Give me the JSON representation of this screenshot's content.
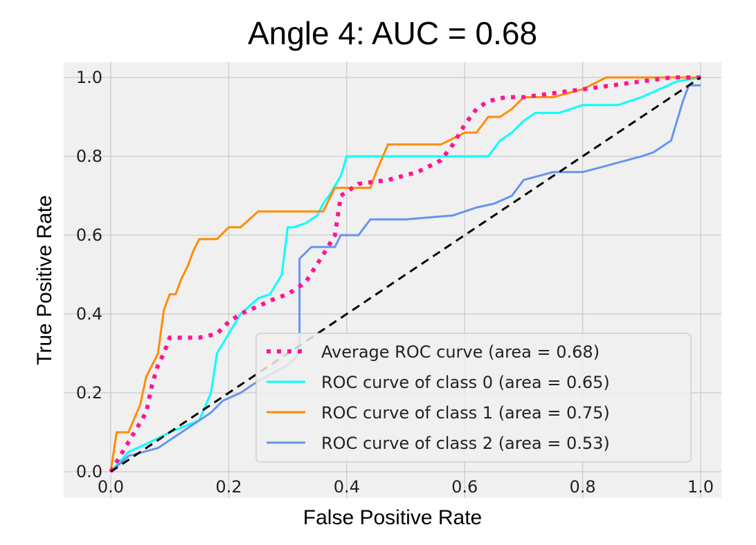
{
  "chart_data": {
    "type": "line",
    "title": "Angle 4: AUC = 0.68",
    "xlabel": "False Positive Rate",
    "ylabel": "True Positive Rate",
    "xlim": [
      0.0,
      1.0
    ],
    "ylim": [
      0.0,
      1.0
    ],
    "xticks": [
      "0.0",
      "0.2",
      "0.4",
      "0.6",
      "0.8",
      "1.0"
    ],
    "yticks": [
      "0.0",
      "0.2",
      "0.4",
      "0.6",
      "0.8",
      "1.0"
    ],
    "grid": true,
    "legend_position": "lower-right",
    "series": [
      {
        "name": "Average ROC curve (area = 0.68)",
        "color": "#ff1493",
        "style": "dotted",
        "x": [
          0.0,
          0.02,
          0.04,
          0.06,
          0.07,
          0.08,
          0.09,
          0.1,
          0.12,
          0.15,
          0.18,
          0.2,
          0.22,
          0.25,
          0.28,
          0.3,
          0.33,
          0.36,
          0.38,
          0.39,
          0.42,
          0.47,
          0.52,
          0.56,
          0.58,
          0.6,
          0.62,
          0.64,
          0.67,
          0.7,
          0.75,
          0.8,
          0.85,
          0.9,
          0.95,
          1.0
        ],
        "y": [
          0.0,
          0.05,
          0.1,
          0.15,
          0.22,
          0.27,
          0.3,
          0.34,
          0.34,
          0.34,
          0.35,
          0.38,
          0.4,
          0.42,
          0.44,
          0.45,
          0.48,
          0.55,
          0.6,
          0.7,
          0.73,
          0.74,
          0.76,
          0.79,
          0.83,
          0.88,
          0.92,
          0.94,
          0.95,
          0.95,
          0.96,
          0.97,
          0.98,
          0.99,
          1.0,
          1.0
        ]
      },
      {
        "name": "ROC curve of class 0 (area = 0.65)",
        "color": "#00ffff",
        "style": "solid",
        "x": [
          0.0,
          0.03,
          0.06,
          0.1,
          0.15,
          0.17,
          0.18,
          0.2,
          0.22,
          0.25,
          0.27,
          0.29,
          0.3,
          0.31,
          0.33,
          0.35,
          0.36,
          0.37,
          0.39,
          0.4,
          0.5,
          0.64,
          0.66,
          0.68,
          0.7,
          0.72,
          0.76,
          0.8,
          0.86,
          0.9,
          0.93,
          0.96,
          1.0
        ],
        "y": [
          0.0,
          0.05,
          0.07,
          0.1,
          0.13,
          0.2,
          0.3,
          0.35,
          0.4,
          0.44,
          0.45,
          0.5,
          0.62,
          0.62,
          0.63,
          0.65,
          0.68,
          0.7,
          0.75,
          0.8,
          0.8,
          0.8,
          0.84,
          0.86,
          0.89,
          0.91,
          0.91,
          0.93,
          0.93,
          0.95,
          0.97,
          0.99,
          1.0
        ]
      },
      {
        "name": "ROC curve of class 1 (area = 0.75)",
        "color": "#ff8c00",
        "style": "solid",
        "x": [
          0.0,
          0.01,
          0.03,
          0.05,
          0.06,
          0.08,
          0.09,
          0.1,
          0.11,
          0.12,
          0.13,
          0.14,
          0.15,
          0.18,
          0.2,
          0.22,
          0.25,
          0.3,
          0.36,
          0.38,
          0.4,
          0.44,
          0.45,
          0.47,
          0.5,
          0.56,
          0.6,
          0.62,
          0.64,
          0.66,
          0.68,
          0.7,
          0.72,
          0.75,
          0.8,
          0.84,
          0.88,
          0.95,
          1.0
        ],
        "y": [
          0.0,
          0.1,
          0.1,
          0.17,
          0.24,
          0.3,
          0.41,
          0.45,
          0.45,
          0.49,
          0.52,
          0.56,
          0.59,
          0.59,
          0.62,
          0.62,
          0.66,
          0.66,
          0.66,
          0.72,
          0.72,
          0.72,
          0.76,
          0.83,
          0.83,
          0.83,
          0.86,
          0.86,
          0.9,
          0.9,
          0.92,
          0.95,
          0.95,
          0.95,
          0.97,
          1.0,
          1.0,
          1.0,
          1.0
        ]
      },
      {
        "name": "ROC curve of class 2 (area = 0.53)",
        "color": "#6495ed",
        "style": "solid",
        "x": [
          0.0,
          0.03,
          0.08,
          0.12,
          0.17,
          0.19,
          0.22,
          0.25,
          0.3,
          0.32,
          0.32,
          0.34,
          0.38,
          0.39,
          0.42,
          0.44,
          0.5,
          0.58,
          0.62,
          0.65,
          0.68,
          0.7,
          0.75,
          0.8,
          0.85,
          0.9,
          0.92,
          0.95,
          0.96,
          0.97,
          0.98,
          1.0
        ],
        "y": [
          0.0,
          0.04,
          0.06,
          0.1,
          0.15,
          0.18,
          0.2,
          0.23,
          0.27,
          0.3,
          0.54,
          0.57,
          0.57,
          0.6,
          0.6,
          0.64,
          0.64,
          0.65,
          0.67,
          0.68,
          0.7,
          0.74,
          0.76,
          0.76,
          0.78,
          0.8,
          0.81,
          0.84,
          0.89,
          0.94,
          0.98,
          0.98
        ]
      },
      {
        "name": "",
        "color": "#000000",
        "style": "dashed",
        "x": [
          0.0,
          1.0
        ],
        "y": [
          0.0,
          1.0
        ]
      }
    ]
  }
}
